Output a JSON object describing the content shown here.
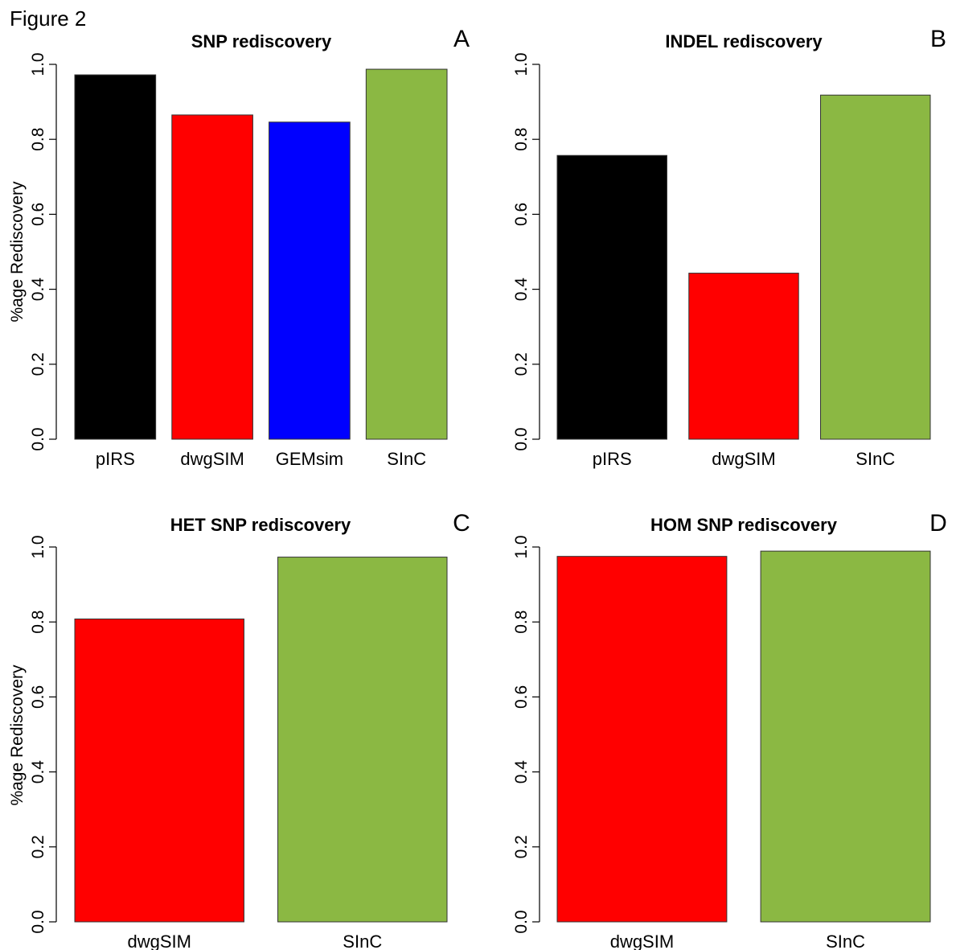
{
  "figure_label": "Figure 2",
  "chart_data": [
    {
      "panel": "A",
      "type": "bar",
      "title": "SNP rediscovery",
      "ylabel": "%age Rediscovery",
      "xlabel": "",
      "ylim": [
        0,
        1
      ],
      "yticks": [
        "0.0",
        "0.2",
        "0.4",
        "0.6",
        "0.8",
        "1.0"
      ],
      "categories": [
        "pIRS",
        "dwgSIM",
        "GEMsim",
        "SInC"
      ],
      "values": [
        0.972,
        0.865,
        0.846,
        0.987
      ],
      "colors": [
        "#000000",
        "#ff0000",
        "#0000ff",
        "#8bb843"
      ],
      "grid": false
    },
    {
      "panel": "B",
      "type": "bar",
      "title": "INDEL rediscovery",
      "ylabel": "",
      "xlabel": "",
      "ylim": [
        0,
        1
      ],
      "yticks": [
        "0.0",
        "0.2",
        "0.4",
        "0.6",
        "0.8",
        "1.0"
      ],
      "categories": [
        "pIRS",
        "dwgSIM",
        "SInC"
      ],
      "values": [
        0.757,
        0.443,
        0.918
      ],
      "colors": [
        "#000000",
        "#ff0000",
        "#8bb843"
      ],
      "grid": false
    },
    {
      "panel": "C",
      "type": "bar",
      "title": "HET SNP rediscovery",
      "ylabel": "%age Rediscovery",
      "xlabel": "",
      "ylim": [
        0,
        1
      ],
      "yticks": [
        "0.0",
        "0.2",
        "0.4",
        "0.6",
        "0.8",
        "1.0"
      ],
      "categories": [
        "dwgSIM",
        "SInC"
      ],
      "values": [
        0.808,
        0.973
      ],
      "colors": [
        "#ff0000",
        "#8bb843"
      ],
      "grid": false
    },
    {
      "panel": "D",
      "type": "bar",
      "title": "HOM SNP rediscovery",
      "ylabel": "",
      "xlabel": "",
      "ylim": [
        0,
        1
      ],
      "yticks": [
        "0.0",
        "0.2",
        "0.4",
        "0.6",
        "0.8",
        "1.0"
      ],
      "categories": [
        "dwgSIM",
        "SInC"
      ],
      "values": [
        0.975,
        0.989
      ],
      "colors": [
        "#ff0000",
        "#8bb843"
      ],
      "grid": false
    }
  ]
}
